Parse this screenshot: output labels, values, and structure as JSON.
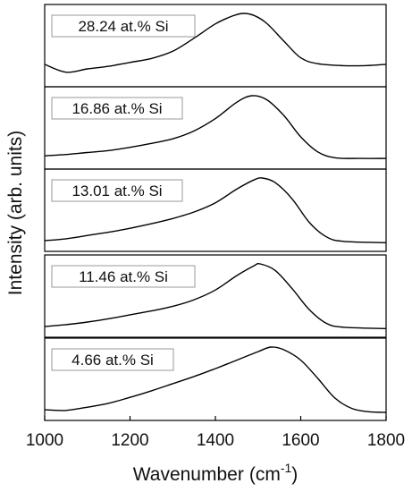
{
  "chart_data": {
    "type": "line",
    "layout": "stacked-panels",
    "xlabel": "Wavenumber",
    "xlabel_unit_prefix": "(cm",
    "xlabel_unit_exponent": "-1",
    "xlabel_unit_suffix": ")",
    "ylabel": "Intensity (arb. units)",
    "xlim": [
      1000,
      1800
    ],
    "xticks": [
      1000,
      1200,
      1400,
      1600,
      1800
    ],
    "xtick_labels": [
      "1000",
      "1200",
      "1400",
      "1600",
      "1800"
    ],
    "y_ticks_shown": false,
    "line_color": "#000000",
    "panels": [
      {
        "label": "28.24 at.% Si",
        "peak_position": 1465,
        "points": [
          [
            1000,
            0.22
          ],
          [
            1050,
            0.1
          ],
          [
            1100,
            0.15
          ],
          [
            1150,
            0.19
          ],
          [
            1200,
            0.25
          ],
          [
            1250,
            0.31
          ],
          [
            1300,
            0.42
          ],
          [
            1350,
            0.62
          ],
          [
            1400,
            0.84
          ],
          [
            1440,
            0.96
          ],
          [
            1465,
            1.0
          ],
          [
            1490,
            0.97
          ],
          [
            1520,
            0.85
          ],
          [
            1560,
            0.58
          ],
          [
            1600,
            0.32
          ],
          [
            1640,
            0.23
          ],
          [
            1700,
            0.2
          ],
          [
            1750,
            0.2
          ],
          [
            1800,
            0.22
          ]
        ]
      },
      {
        "label": "16.86 at.% Si",
        "peak_position": 1485,
        "points": [
          [
            1000,
            0.08
          ],
          [
            1050,
            0.1
          ],
          [
            1100,
            0.13
          ],
          [
            1150,
            0.16
          ],
          [
            1200,
            0.21
          ],
          [
            1250,
            0.27
          ],
          [
            1300,
            0.34
          ],
          [
            1350,
            0.46
          ],
          [
            1400,
            0.65
          ],
          [
            1450,
            0.9
          ],
          [
            1485,
            1.0
          ],
          [
            1520,
            0.94
          ],
          [
            1560,
            0.7
          ],
          [
            1600,
            0.37
          ],
          [
            1640,
            0.14
          ],
          [
            1680,
            0.05
          ],
          [
            1740,
            0.04
          ],
          [
            1800,
            0.04
          ]
        ]
      },
      {
        "label": "13.01 at.% Si",
        "peak_position": 1510,
        "points": [
          [
            1000,
            0.04
          ],
          [
            1050,
            0.07
          ],
          [
            1100,
            0.12
          ],
          [
            1150,
            0.17
          ],
          [
            1200,
            0.23
          ],
          [
            1250,
            0.3
          ],
          [
            1300,
            0.38
          ],
          [
            1350,
            0.48
          ],
          [
            1400,
            0.62
          ],
          [
            1450,
            0.83
          ],
          [
            1490,
            0.97
          ],
          [
            1510,
            1.0
          ],
          [
            1540,
            0.93
          ],
          [
            1580,
            0.68
          ],
          [
            1620,
            0.32
          ],
          [
            1660,
            0.1
          ],
          [
            1700,
            0.03
          ],
          [
            1800,
            0.01
          ]
        ]
      },
      {
        "label": "11.46 at.% Si",
        "peak_position": 1505,
        "points": [
          [
            1000,
            0.04
          ],
          [
            1050,
            0.07
          ],
          [
            1100,
            0.11
          ],
          [
            1150,
            0.16
          ],
          [
            1200,
            0.22
          ],
          [
            1250,
            0.28
          ],
          [
            1300,
            0.35
          ],
          [
            1350,
            0.45
          ],
          [
            1400,
            0.6
          ],
          [
            1450,
            0.82
          ],
          [
            1490,
            0.97
          ],
          [
            1505,
            1.0
          ],
          [
            1540,
            0.9
          ],
          [
            1580,
            0.62
          ],
          [
            1620,
            0.3
          ],
          [
            1660,
            0.09
          ],
          [
            1700,
            0.03
          ],
          [
            1800,
            0.01
          ]
        ]
      },
      {
        "label": "4.66 at.% Si",
        "peak_position": 1530,
        "points": [
          [
            1000,
            0.04
          ],
          [
            1050,
            0.03
          ],
          [
            1100,
            0.08
          ],
          [
            1150,
            0.14
          ],
          [
            1200,
            0.23
          ],
          [
            1250,
            0.33
          ],
          [
            1300,
            0.44
          ],
          [
            1350,
            0.55
          ],
          [
            1400,
            0.67
          ],
          [
            1450,
            0.8
          ],
          [
            1500,
            0.93
          ],
          [
            1530,
            1.0
          ],
          [
            1560,
            0.96
          ],
          [
            1600,
            0.8
          ],
          [
            1640,
            0.52
          ],
          [
            1680,
            0.22
          ],
          [
            1720,
            0.06
          ],
          [
            1760,
            0.01
          ],
          [
            1800,
            0.0
          ]
        ]
      }
    ]
  }
}
